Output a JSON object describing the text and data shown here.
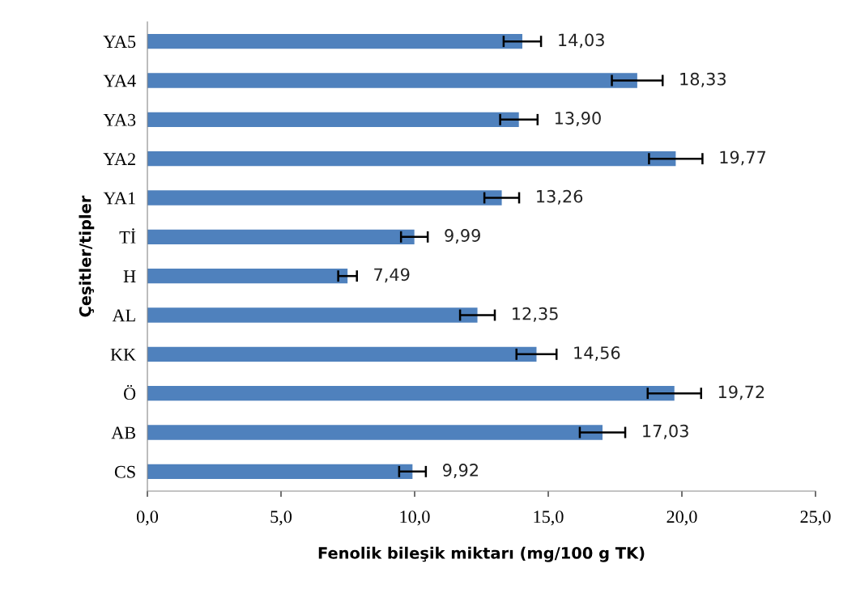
{
  "chart_data": {
    "type": "bar",
    "orientation": "horizontal",
    "xlabel": "Fenolik bileşik miktarı (mg/100 g TK)",
    "ylabel": "Çeşitler/tipler",
    "categories": [
      "YA5",
      "YA4",
      "YA3",
      "YA2",
      "YA1",
      "Tİ",
      "H",
      "AL",
      "KK",
      "Ö",
      "AB",
      "CS"
    ],
    "values": [
      14.03,
      18.33,
      13.9,
      19.77,
      13.26,
      9.99,
      7.49,
      12.35,
      14.56,
      19.72,
      17.03,
      9.92
    ],
    "errors": [
      0.7,
      0.95,
      0.7,
      1.0,
      0.65,
      0.5,
      0.35,
      0.65,
      0.75,
      1.0,
      0.85,
      0.5
    ],
    "value_labels": [
      "14,03",
      "18,33",
      "13,90",
      "19,77",
      "13,26",
      "9,99",
      "7,49",
      "12,35",
      "14,56",
      "19,72",
      "17,03",
      "9,92"
    ],
    "color": "#4f81bd",
    "xlim": [
      0,
      25
    ],
    "xticks": [
      {
        "value": 0,
        "label": "0,0"
      },
      {
        "value": 5,
        "label": "5,0"
      },
      {
        "value": 10,
        "label": "10,0"
      },
      {
        "value": 15,
        "label": "15,0"
      },
      {
        "value": 20,
        "label": "20,0"
      },
      {
        "value": 25,
        "label": "25,0"
      }
    ],
    "grid": false,
    "legend": false
  }
}
